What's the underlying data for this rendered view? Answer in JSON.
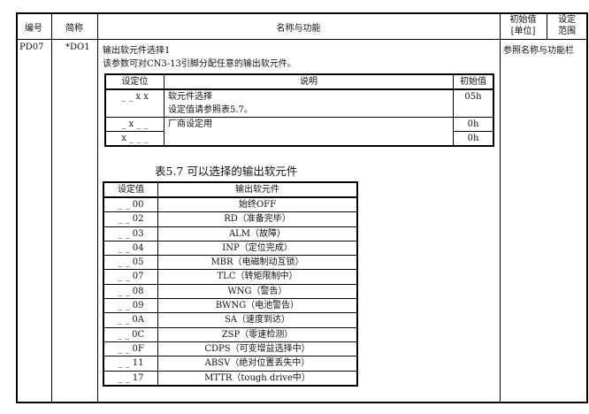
{
  "header": {
    "no": "编号",
    "abbr": "简称",
    "name": "名称与功能",
    "init": "初始值",
    "unit": "[单位]",
    "range1": "设定",
    "range2": "范围"
  },
  "param": {
    "no": "PD07",
    "abbr": "*DO1",
    "title": "输出软元件选择1",
    "desc": "该参数可对CN3-13引脚分配任意的输出软元件。",
    "range": "参照名称与功能栏"
  },
  "setting_table": {
    "headers": [
      "设定位",
      "说明",
      "初始值"
    ],
    "rows": [
      {
        "bit": "_ _ x x",
        "desc1": "软元件选择",
        "desc2": "设定值请参照表5.7。",
        "init": "05h"
      },
      {
        "bit": "_ x _ _",
        "desc1": "厂商设定用",
        "init": "0h"
      },
      {
        "bit": "x _ _ _",
        "init": "0h"
      }
    ]
  },
  "table57": {
    "caption": "表5.7 可以选择的输出软元件",
    "headers": [
      "设定值",
      "输出软元件"
    ],
    "rows": [
      [
        "_ _ 00",
        "始终OFF"
      ],
      [
        "_ _ 02",
        "RD（准备完毕）"
      ],
      [
        "_ _ 03",
        "ALM（故障）"
      ],
      [
        "_ _ 04",
        "INP（定位完成）"
      ],
      [
        "_ _ 05",
        "MBR（电磁制动互锁）"
      ],
      [
        "_ _ 07",
        "TLC（转矩限制中）"
      ],
      [
        "_ _ 08",
        "WNG（警告）"
      ],
      [
        "_ _ 09",
        "BWNG（电池警告）"
      ],
      [
        "_ _ 0A",
        "SA（速度到达）"
      ],
      [
        "_ _ 0C",
        "ZSP（零速检测）"
      ],
      [
        "_ _ 0F",
        "CDPS（可变增益选择中）"
      ],
      [
        "_ _ 11",
        "ABSV（绝对位置丢失中）"
      ],
      [
        "_ _ 17",
        "MTTR（tough drive中）"
      ]
    ]
  }
}
